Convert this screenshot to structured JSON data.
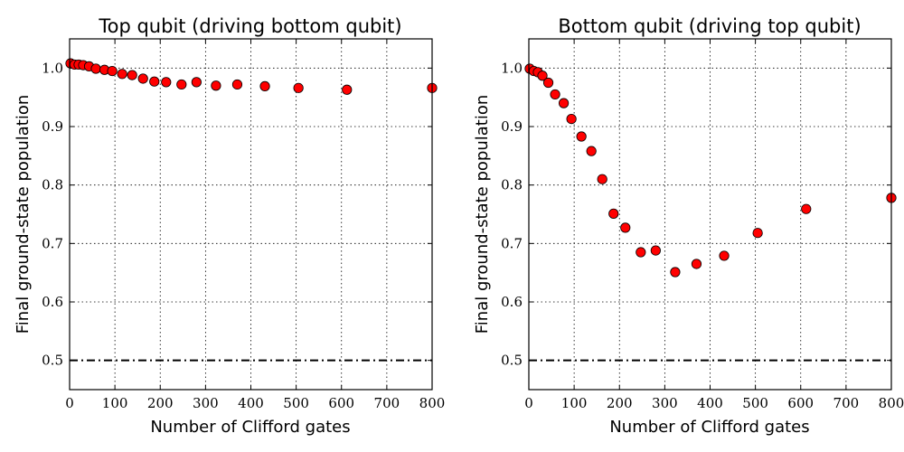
{
  "chart_data": [
    {
      "type": "scatter",
      "title": "Top qubit (driving bottom qubit)",
      "xlabel": "Number of Clifford gates",
      "ylabel": "Final ground-state population",
      "xlim": [
        0,
        800
      ],
      "ylim": [
        0.45,
        1.05
      ],
      "xticks": [
        "0",
        "100",
        "200",
        "300",
        "400",
        "500",
        "600",
        "700",
        "800"
      ],
      "yticks": [
        "0.5",
        "0.6",
        "0.7",
        "0.8",
        "0.9",
        "1.0"
      ],
      "grid": true,
      "marker_color": "#ff0000",
      "reference_line": 0.5,
      "series": [
        {
          "x": [
            2,
            11,
            20,
            30,
            43,
            58,
            77,
            94,
            116,
            138,
            162,
            187,
            213,
            247,
            280,
            323,
            370,
            431,
            505,
            612,
            800
          ],
          "y": [
            1.008,
            1.006,
            1.006,
            1.005,
            1.003,
            0.999,
            0.997,
            0.995,
            0.99,
            0.988,
            0.982,
            0.977,
            0.976,
            0.972,
            0.976,
            0.97,
            0.972,
            0.969,
            0.966,
            0.963,
            0.966
          ]
        }
      ]
    },
    {
      "type": "scatter",
      "title": "Bottom qubit (driving top qubit)",
      "xlabel": "Number of Clifford gates",
      "ylabel": "Final ground-state population",
      "xlim": [
        0,
        800
      ],
      "ylim": [
        0.45,
        1.05
      ],
      "xticks": [
        "0",
        "100",
        "200",
        "300",
        "400",
        "500",
        "600",
        "700",
        "800"
      ],
      "yticks": [
        "0.5",
        "0.6",
        "0.7",
        "0.8",
        "0.9",
        "1.0"
      ],
      "grid": true,
      "marker_color": "#ff0000",
      "reference_line": 0.5,
      "series": [
        {
          "x": [
            2,
            11,
            20,
            30,
            43,
            58,
            77,
            94,
            116,
            138,
            162,
            187,
            213,
            247,
            280,
            323,
            370,
            431,
            505,
            612,
            800
          ],
          "y": [
            0.999,
            0.995,
            0.993,
            0.987,
            0.975,
            0.955,
            0.94,
            0.913,
            0.883,
            0.858,
            0.81,
            0.751,
            0.727,
            0.685,
            0.688,
            0.651,
            0.665,
            0.679,
            0.718,
            0.759,
            0.778
          ]
        }
      ]
    }
  ]
}
